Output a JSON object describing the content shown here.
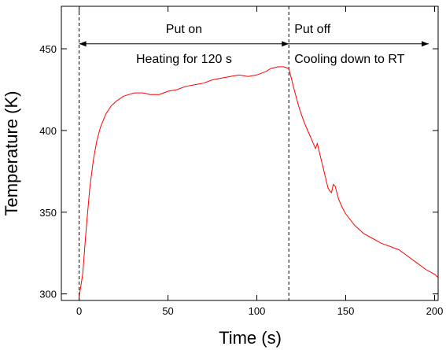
{
  "chart_data": {
    "type": "line",
    "title": "",
    "xlabel": "Time (s)",
    "ylabel": "Temperature (K)",
    "xlim": [
      -10,
      202
    ],
    "ylim": [
      296,
      476
    ],
    "xticks": [
      0,
      50,
      100,
      150,
      200
    ],
    "yticks": [
      300,
      350,
      400,
      450
    ],
    "grid": false,
    "legend": "none",
    "series": [
      {
        "color": "#ff0000",
        "x": [
          0,
          2,
          4,
          6,
          8,
          10,
          12,
          15,
          18,
          21,
          25,
          28,
          31,
          33,
          36,
          40,
          45,
          50,
          55,
          60,
          65,
          70,
          75,
          80,
          85,
          90,
          95,
          100,
          105,
          108,
          112,
          115,
          118,
          121,
          124,
          127,
          129,
          131,
          133,
          134,
          136,
          138,
          140,
          141,
          142,
          143,
          144,
          146,
          148,
          150,
          155,
          160,
          165,
          170,
          175,
          180,
          185,
          190,
          195,
          200,
          202
        ],
        "y": [
          298,
          312,
          340,
          365,
          382,
          394,
          402,
          410,
          415,
          418,
          421,
          422,
          423,
          423,
          423,
          422,
          422,
          424,
          425,
          427,
          428,
          429,
          431,
          432,
          433,
          434,
          433,
          434,
          436,
          438,
          439,
          439,
          438,
          425,
          413,
          404,
          399,
          394,
          389,
          392,
          383,
          374,
          365,
          363,
          362,
          367,
          366,
          358,
          353,
          349,
          342,
          337,
          334,
          331,
          329,
          327,
          323,
          319,
          315,
          312,
          310
        ]
      }
    ],
    "vlines": [
      0,
      118
    ],
    "annotations": {
      "left_label": "Put on",
      "right_label": "Put off",
      "left_note": "Heating for 120 s",
      "right_note": "Cooling down to RT",
      "arrow_y": 453
    },
    "colors": {
      "line": "#ff0000",
      "axis": "#000000"
    }
  }
}
